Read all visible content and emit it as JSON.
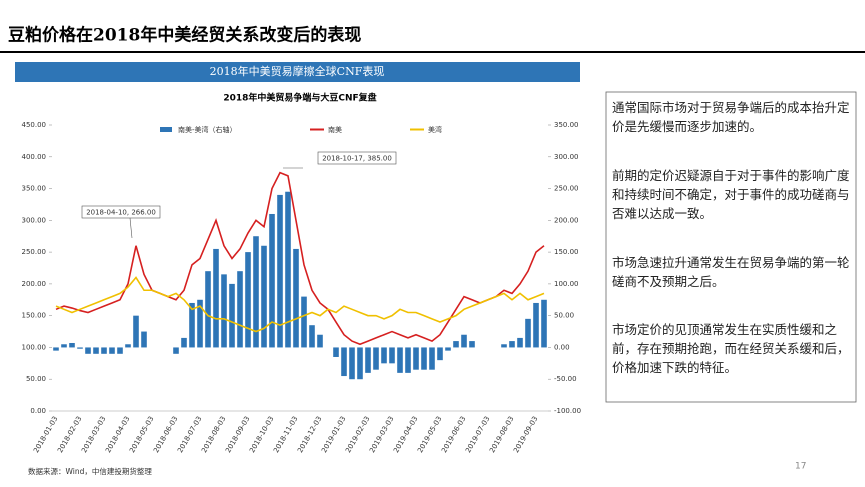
{
  "slide_title": "豆粕价格在2018年中美经贸关系改变后的表现",
  "banner": "2018年中美贸易摩擦全球CNF表现",
  "notes": [
    "通常国际市场对于贸易争端后的成本抬升定价是先缓慢而逐步加速的。",
    "前期的定价迟疑源自于对于事件的影响广度和持续时间不确定，对于事件的成功磋商与否难以达成一致。",
    "市场急速拉升通常发生在贸易争端的第一轮磋商不及预期之后。",
    "市场定价的见顶通常发生在实质性缓和之前，存在预期抢跑，而在经贸关系缓和后，价格加速下跌的特征。"
  ],
  "source": "数据来源：Wind，中信建投期货整理",
  "page_number": "17",
  "chart_data": {
    "type": "combo",
    "title": "2018年中美贸易争端与大豆CNF复盘",
    "categories": [
      "2018-01-03",
      "2018-01-13",
      "2018-01-23",
      "2018-02-03",
      "2018-02-13",
      "2018-02-23",
      "2018-03-03",
      "2018-03-13",
      "2018-03-23",
      "2018-04-03",
      "2018-04-13",
      "2018-04-23",
      "2018-05-03",
      "2018-05-13",
      "2018-05-23",
      "2018-06-03",
      "2018-06-13",
      "2018-06-23",
      "2018-07-03",
      "2018-07-13",
      "2018-07-23",
      "2018-08-03",
      "2018-08-13",
      "2018-08-23",
      "2018-09-03",
      "2018-09-13",
      "2018-09-23",
      "2018-10-03",
      "2018-10-13",
      "2018-10-23",
      "2018-11-03",
      "2018-11-13",
      "2018-11-23",
      "2018-12-03",
      "2018-12-13",
      "2018-12-23",
      "2019-01-03",
      "2019-01-13",
      "2019-01-23",
      "2019-02-03",
      "2019-02-13",
      "2019-02-23",
      "2019-03-03",
      "2019-03-13",
      "2019-03-23",
      "2019-04-03",
      "2019-04-13",
      "2019-04-23",
      "2019-05-03",
      "2019-05-13",
      "2019-05-23",
      "2019-06-03",
      "2019-06-13",
      "2019-06-23",
      "2019-07-03",
      "2019-07-13",
      "2019-07-23",
      "2019-08-03",
      "2019-08-13",
      "2019-08-23",
      "2019-09-03",
      "2019-09-13"
    ],
    "series": [
      {
        "name": "南美-美湾（右轴）",
        "type": "bar",
        "axis": "y2",
        "color": "#2e75b6",
        "values": [
          -5,
          5,
          7,
          -2,
          -10,
          -10,
          -10,
          -10,
          -10,
          5,
          50,
          25,
          0,
          0,
          0,
          -10,
          15,
          70,
          75,
          120,
          155,
          115,
          100,
          120,
          150,
          175,
          160,
          210,
          240,
          245,
          155,
          80,
          35,
          20,
          0,
          -15,
          -45,
          -50,
          -50,
          -40,
          -35,
          -25,
          -25,
          -40,
          -40,
          -35,
          -35,
          -35,
          -20,
          -5,
          10,
          20,
          10,
          0,
          0,
          0,
          5,
          10,
          15,
          45,
          70,
          75
        ]
      },
      {
        "name": "南美",
        "type": "line",
        "color": "#d62020",
        "values": [
          160,
          165,
          162,
          158,
          155,
          160,
          165,
          170,
          175,
          200,
          260,
          215,
          190,
          185,
          180,
          175,
          190,
          230,
          240,
          270,
          300,
          260,
          240,
          255,
          280,
          300,
          290,
          350,
          375,
          370,
          300,
          230,
          190,
          170,
          160,
          140,
          120,
          110,
          105,
          110,
          115,
          120,
          125,
          120,
          115,
          120,
          115,
          110,
          120,
          140,
          160,
          180,
          175,
          170,
          175,
          180,
          190,
          185,
          200,
          220,
          250,
          260
        ]
      },
      {
        "name": "美湾",
        "type": "line",
        "color": "#f0c000",
        "values": [
          165,
          160,
          155,
          160,
          165,
          170,
          175,
          180,
          185,
          195,
          210,
          190,
          190,
          185,
          180,
          185,
          175,
          160,
          165,
          150,
          145,
          145,
          140,
          135,
          130,
          125,
          130,
          140,
          135,
          140,
          145,
          150,
          155,
          150,
          160,
          155,
          165,
          160,
          155,
          150,
          150,
          145,
          150,
          160,
          155,
          155,
          150,
          145,
          140,
          145,
          150,
          160,
          165,
          170,
          175,
          180,
          185,
          175,
          185,
          175,
          180,
          185
        ]
      }
    ],
    "annotations": [
      "2018-04-10, 266.00",
      "2018-10-17, 385.00"
    ],
    "ylim": [
      0,
      450
    ],
    "yticks": [
      {
        "value": 0,
        "label": "0.00"
      },
      {
        "value": 50,
        "label": "50.00"
      },
      {
        "value": 100,
        "label": "100.00"
      },
      {
        "value": 150,
        "label": "150.00"
      },
      {
        "value": 200,
        "label": "200.00"
      },
      {
        "value": 250,
        "label": "250.00"
      },
      {
        "value": 300,
        "label": "300.00"
      },
      {
        "value": 350,
        "label": "350.00"
      },
      {
        "value": 400,
        "label": "400.00"
      },
      {
        "value": 450,
        "label": "450.00"
      }
    ],
    "y2lim": [
      -100,
      350
    ],
    "y2ticks": [
      {
        "value": -100,
        "label": "-100.00"
      },
      {
        "value": -50,
        "label": "-50.00"
      },
      {
        "value": 0,
        "label": "0.00"
      },
      {
        "value": 50,
        "label": "50.00"
      },
      {
        "value": 100,
        "label": "100.00"
      },
      {
        "value": 150,
        "label": "150.00"
      },
      {
        "value": 200,
        "label": "200.00"
      },
      {
        "value": 250,
        "label": "250.00"
      },
      {
        "value": 300,
        "label": "300.00"
      },
      {
        "value": 350,
        "label": "350.00"
      }
    ],
    "legend": "top"
  }
}
